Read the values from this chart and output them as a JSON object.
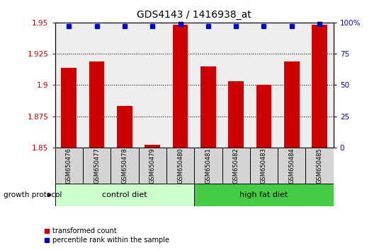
{
  "title": "GDS4143 / 1416938_at",
  "samples": [
    "GSM650476",
    "GSM650477",
    "GSM650478",
    "GSM650479",
    "GSM650480",
    "GSM650481",
    "GSM650482",
    "GSM650483",
    "GSM650484",
    "GSM650485"
  ],
  "bar_values": [
    1.914,
    1.919,
    1.883,
    1.852,
    1.948,
    1.915,
    1.903,
    1.9,
    1.919,
    1.948
  ],
  "percentile_values": [
    97,
    97,
    97,
    97,
    99,
    97,
    97,
    97,
    97,
    99
  ],
  "ylim_left": [
    1.85,
    1.95
  ],
  "ylim_right": [
    0,
    100
  ],
  "yticks_left": [
    1.85,
    1.875,
    1.9,
    1.925,
    1.95
  ],
  "yticks_right": [
    0,
    25,
    50,
    75,
    100
  ],
  "ytick_labels_left": [
    "1.85",
    "1.875",
    "1.9",
    "1.925",
    "1.95"
  ],
  "ytick_labels_right": [
    "0",
    "25",
    "50",
    "75",
    "100%"
  ],
  "bar_color": "#cc0000",
  "percentile_color": "#0000cc",
  "bar_width": 0.55,
  "groups": [
    {
      "label": "control diet",
      "indices": [
        0,
        1,
        2,
        3,
        4
      ],
      "color": "#ccffcc"
    },
    {
      "label": "high fat diet",
      "indices": [
        5,
        6,
        7,
        8,
        9
      ],
      "color": "#44cc44"
    }
  ],
  "group_label": "growth protocol",
  "grid_color": "#000000",
  "tick_label_color_left": "#cc0000",
  "tick_label_color_right": "#0000cc",
  "legend_items": [
    {
      "label": "transformed count",
      "color": "#cc0000",
      "marker": "s"
    },
    {
      "label": "percentile rank within the sample",
      "color": "#0000cc",
      "marker": "s"
    }
  ],
  "background_color": "#ffffff",
  "plot_bg_color": "#eeeeee",
  "sample_box_color": "#d4d4d4"
}
